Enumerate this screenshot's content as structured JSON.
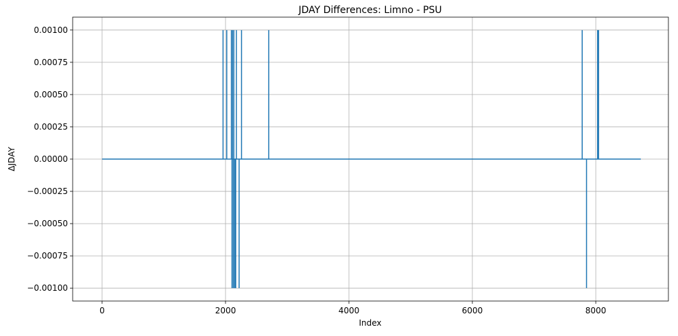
{
  "chart_data": {
    "type": "line",
    "title": "JDAY Differences: Limno - PSU",
    "xlabel": "Index",
    "ylabel": "ΔJDAY",
    "xlim": [
      -477,
      9177
    ],
    "ylim": [
      -0.0011,
      0.0011
    ],
    "x_ticks": [
      0,
      2000,
      4000,
      6000,
      8000
    ],
    "x_tick_labels": [
      "0",
      "2000",
      "4000",
      "6000",
      "8000"
    ],
    "y_ticks": [
      -0.001,
      -0.00075,
      -0.0005,
      -0.00025,
      0,
      0.00025,
      0.0005,
      0.00075,
      0.001
    ],
    "y_tick_labels": [
      "−0.00100",
      "−0.00075",
      "−0.00050",
      "−0.00025",
      "0.00000",
      "0.00025",
      "0.00050",
      "0.00075",
      "0.00100"
    ],
    "grid": true,
    "series": [
      {
        "color": "#1f77b4",
        "x_range": [
          0,
          8730
        ],
        "baseline": 0,
        "spikes": [
          {
            "x": 1960,
            "value": 0.001
          },
          {
            "x": 2020,
            "value": 0.001
          },
          {
            "x": 2095,
            "value": 0.001
          },
          {
            "x": 2105,
            "value": -0.001
          },
          {
            "x": 2115,
            "value": 0.001
          },
          {
            "x": 2125,
            "value": -0.001
          },
          {
            "x": 2135,
            "value": 0.001
          },
          {
            "x": 2145,
            "value": -0.001
          },
          {
            "x": 2155,
            "value": -0.001
          },
          {
            "x": 2165,
            "value": -0.001
          },
          {
            "x": 2175,
            "value": 0.001
          },
          {
            "x": 2220,
            "value": -0.001
          },
          {
            "x": 2260,
            "value": 0.001
          },
          {
            "x": 2700,
            "value": 0.001
          },
          {
            "x": 7780,
            "value": 0.001
          },
          {
            "x": 7850,
            "value": -0.001
          },
          {
            "x": 8030,
            "value": 0.001
          },
          {
            "x": 8045,
            "value": 0.001
          }
        ]
      }
    ]
  }
}
